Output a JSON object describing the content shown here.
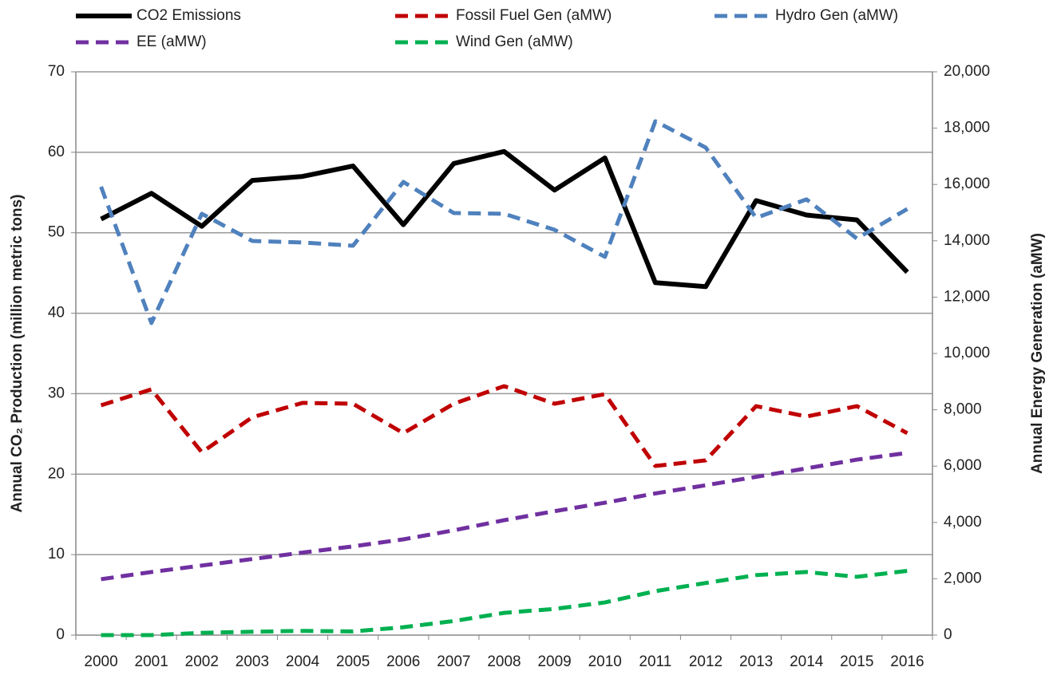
{
  "chart_data": {
    "type": "line",
    "y_label": "Annual CO₂ Production (million metric tons)",
    "y2_label": "Annual Energy Generation (aMW)",
    "categories": [
      "2000",
      "2001",
      "2002",
      "2003",
      "2004",
      "2005",
      "2006",
      "2007",
      "2008",
      "2009",
      "2010",
      "2011",
      "2012",
      "2013",
      "2014",
      "2015",
      "2016"
    ],
    "series": [
      {
        "name": "CO2 Emissions",
        "color": "#000000",
        "dashed": false,
        "values": [
          51.7,
          54.9,
          50.8,
          56.5,
          57.0,
          58.3,
          51.0,
          58.6,
          60.1,
          55.3,
          59.3,
          43.8,
          43.3,
          54.0,
          52.2,
          51.6,
          45.1
        ]
      },
      {
        "name": "Fossil Fuel Gen (aMW)",
        "color": "#c00000",
        "dashed": true,
        "axis": "y2",
        "values": [
          8160,
          8725,
          6490,
          7735,
          8245,
          8215,
          7170,
          8215,
          8840,
          8215,
          8555,
          6005,
          6205,
          8130,
          7760,
          8130,
          7170
        ]
      },
      {
        "name": "Hydro Gen (aMW)",
        "color": "#4f81bd",
        "dashed": true,
        "axis": "y2",
        "values": [
          15920,
          11080,
          14960,
          13995,
          13940,
          13825,
          16090,
          14985,
          14960,
          14390,
          13430,
          18245,
          17310,
          14815,
          15470,
          14080,
          15130
        ]
      },
      {
        "name": "EE (aMW)",
        "color": "#7030a0",
        "dashed": true,
        "axis": "y2",
        "values": [
          1985,
          2240,
          2470,
          2700,
          2930,
          3150,
          3400,
          3720,
          4080,
          4400,
          4700,
          5030,
          5320,
          5620,
          5920,
          6230,
          6470
        ]
      },
      {
        "name": "Wind Gen (aMW)",
        "color": "#00b050",
        "dashed": true,
        "axis": "y2",
        "values": [
          0,
          0,
          80,
          120,
          150,
          130,
          280,
          500,
          790,
          930,
          1160,
          1560,
          1850,
          2130,
          2240,
          2070,
          2280
        ]
      }
    ],
    "ylim": [
      0,
      70
    ],
    "yticks": [
      0,
      10,
      20,
      30,
      40,
      50,
      60,
      70
    ],
    "y2lim": [
      0,
      20000
    ],
    "y2ticks": [
      0,
      {
        "value": 2000,
        "label": "2,000"
      },
      {
        "value": 4000,
        "label": "4,000"
      },
      {
        "value": 6000,
        "label": "6,000"
      },
      {
        "value": 8000,
        "label": "8,000"
      },
      {
        "value": 10000,
        "label": "10,000"
      },
      {
        "value": 12000,
        "label": "12,000"
      },
      {
        "value": 14000,
        "label": "14,000"
      },
      {
        "value": 16000,
        "label": "16,000"
      },
      {
        "value": 18000,
        "label": "18,000"
      },
      {
        "value": 20000,
        "label": "20,000"
      }
    ],
    "grid": true
  }
}
